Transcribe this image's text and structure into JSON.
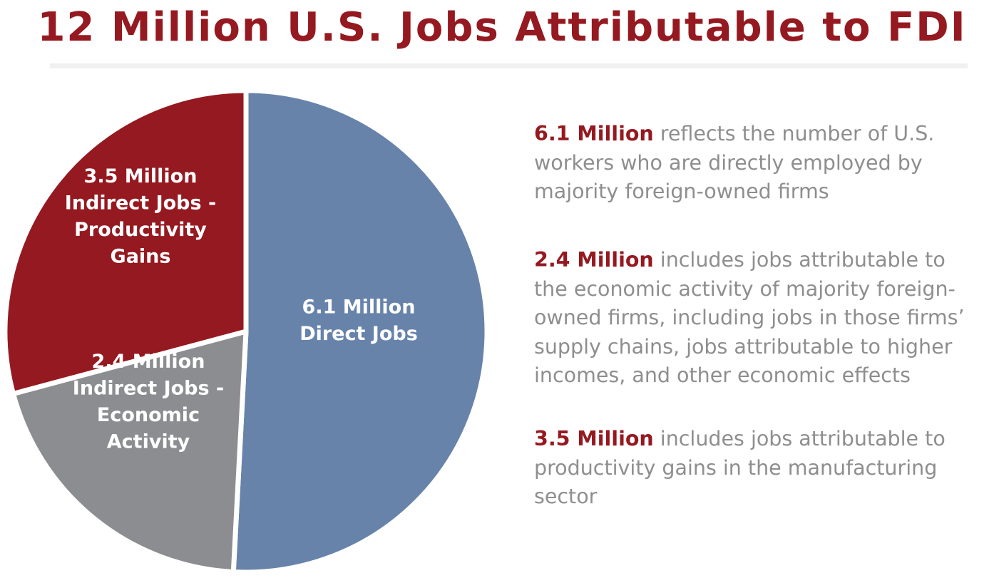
{
  "title": "12 Million U.S. Jobs Attributable to FDI",
  "colors": {
    "title": "#951920",
    "accent_red": "#951920",
    "direct_blue": "#6783aa",
    "economic_gray": "#8c8d90",
    "productivity_red": "#951920",
    "body_text": "#8e8e8e",
    "slice_separator": "#ffffff"
  },
  "chart_data": {
    "type": "pie",
    "start_angle_deg": 0,
    "direction": "clockwise",
    "slices": [
      {
        "label": "6.1 Million Direct Jobs",
        "label_lines": [
          "6.1 Million",
          "Direct Jobs"
        ],
        "value": 6.1,
        "unit": "Million",
        "color": "#6783aa"
      },
      {
        "label": "2.4 Million Indirect Jobs - Economic Activity",
        "label_lines": [
          "2.4 Million",
          "Indirect Jobs -",
          "Economic",
          "Activity"
        ],
        "value": 2.4,
        "unit": "Million",
        "color": "#8c8d90"
      },
      {
        "label": "3.5 Million Indirect Jobs - Productivity Gains",
        "label_lines": [
          "3.5 Million",
          "Indirect Jobs -",
          "Productivity",
          "Gains"
        ],
        "value": 3.5,
        "unit": "Million",
        "color": "#951920"
      }
    ],
    "legend": "none",
    "total": 12
  },
  "descriptions": [
    {
      "lead": "6.1 Million",
      "lines": [
        " reflects the number of U.S.",
        "workers who are directly employed by",
        "majority foreign-owned firms"
      ]
    },
    {
      "lead": "2.4 Million",
      "lines": [
        " includes jobs attributable to",
        "the economic activity of majority foreign-",
        "owned firms, including jobs in those firms’",
        "supply chains, jobs attributable to higher",
        "incomes, and other economic effects"
      ]
    },
    {
      "lead": "3.5 Million",
      "lines": [
        " includes jobs attributable to",
        "productivity gains in the manufacturing",
        "sector"
      ]
    }
  ]
}
